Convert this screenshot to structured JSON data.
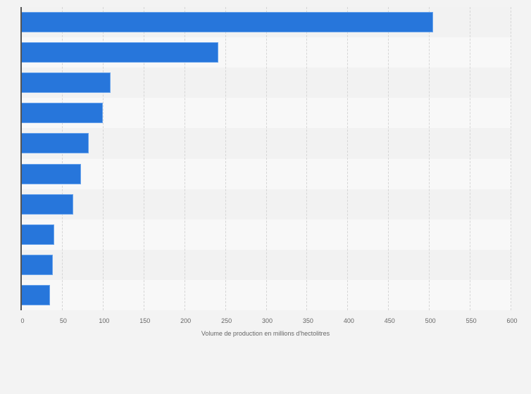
{
  "chart_data": {
    "type": "bar",
    "orientation": "horizontal",
    "title": "",
    "xlabel": "Volume de production en millions d'hectolitres",
    "ylabel": "",
    "categories": [
      "",
      "",
      "",
      "",
      "",
      "",
      "",
      "",
      "",
      ""
    ],
    "values": [
      505,
      242,
      110,
      100,
      83,
      73,
      64,
      41,
      39,
      35
    ],
    "xlim": [
      0,
      600
    ],
    "xticks": [
      "0",
      "50",
      "100",
      "150",
      "200",
      "250",
      "300",
      "350",
      "400",
      "450",
      "500",
      "550",
      "600"
    ],
    "grid": true,
    "legend": null,
    "bar_color": "#2776db"
  }
}
